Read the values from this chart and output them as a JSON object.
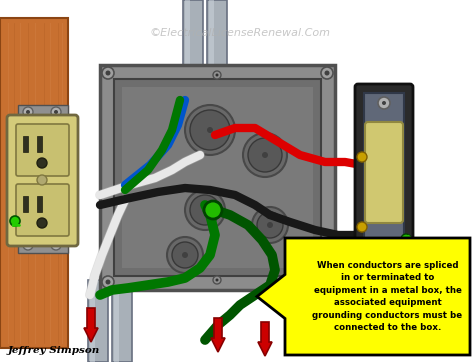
{
  "watermark": "©ElectricalLicenseRenewal.Com",
  "author": "Jeffrey Simpson",
  "annotation_text": "When conductors are spliced\nin or terminated to\nequipment in a metal box, the\nassociated equipment\ngrounding conductors must be\nconnected to the box.",
  "annotation_box_color": "#FFFF00",
  "annotation_border_color": "#000000",
  "bg_color": "#FFFFFF",
  "wood_color": "#C87030",
  "wood_dark": "#8B4513",
  "wood_light": "#D4854A",
  "metal_box_outer": "#8C8C8C",
  "metal_box_inner": "#6E6E6E",
  "metal_box_face": "#7A7A7A",
  "metal_box_border": "#505050",
  "conduit_color": "#A8B0B8",
  "conduit_dark": "#687080",
  "conduit_light": "#C8D0D8",
  "outlet_body": "#D4CB7A",
  "outlet_dark": "#8A8050",
  "outlet_face": "#C8C070",
  "switch_plate": "#606878",
  "switch_dark": "#404850",
  "switch_paddle": "#D0C870",
  "wire_white": "#E8E8E8",
  "wire_black": "#181818",
  "wire_red": "#DD0000",
  "wire_green": "#007700",
  "wire_blue": "#0055CC",
  "wire_green2": "#005500",
  "arrow_red": "#CC0000",
  "green_dot": "#22BB00",
  "figsize": [
    4.74,
    3.62
  ],
  "dpi": 100
}
